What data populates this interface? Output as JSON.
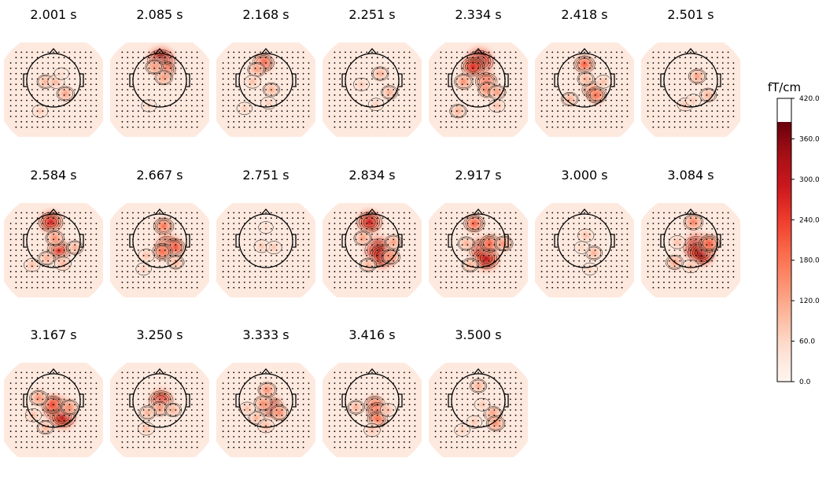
{
  "chart_data": {
    "type": "heatmap",
    "title": "",
    "panels": [
      {
        "time": "2.001 s",
        "hotspots": [
          [
            -0.3,
            0.3,
            0.3
          ],
          [
            0.1,
            0.3,
            0.28
          ],
          [
            0.45,
            -0.15,
            0.35
          ],
          [
            -0.5,
            -0.8,
            0.22
          ],
          [
            0.3,
            0.6,
            0.15
          ]
        ]
      },
      {
        "time": "2.085 s",
        "hotspots": [
          [
            0.05,
            1.08,
            0.95
          ],
          [
            0.2,
            0.75,
            0.55
          ],
          [
            0.15,
            0.45,
            0.35
          ],
          [
            -0.2,
            0.85,
            0.35
          ],
          [
            -0.4,
            -0.6,
            0.18
          ]
        ]
      },
      {
        "time": "2.168 s",
        "hotspots": [
          [
            -0.1,
            1.0,
            0.6
          ],
          [
            -0.35,
            0.75,
            0.35
          ],
          [
            0.2,
            0.0,
            0.3
          ],
          [
            -0.5,
            0.3,
            0.25
          ],
          [
            0.1,
            -0.5,
            0.2
          ],
          [
            -0.8,
            -0.7,
            0.2
          ]
        ]
      },
      {
        "time": "2.251 s",
        "hotspots": [
          [
            0.3,
            0.6,
            0.3
          ],
          [
            0.65,
            -0.1,
            0.3
          ],
          [
            -0.4,
            0.2,
            0.22
          ],
          [
            0.15,
            -0.55,
            0.2
          ]
        ]
      },
      {
        "time": "2.334 s",
        "hotspots": [
          [
            0.05,
            1.05,
            0.95
          ],
          [
            -0.2,
            0.85,
            0.7
          ],
          [
            0.3,
            0.3,
            0.6
          ],
          [
            0.35,
            0.0,
            0.45
          ],
          [
            -0.55,
            0.3,
            0.4
          ],
          [
            0.7,
            -0.1,
            0.35
          ],
          [
            -0.75,
            -0.8,
            0.3
          ],
          [
            0.7,
            -0.6,
            0.25
          ]
        ]
      },
      {
        "time": "2.418 s",
        "hotspots": [
          [
            0.0,
            0.95,
            0.55
          ],
          [
            0.3,
            0.0,
            0.55
          ],
          [
            0.45,
            -0.2,
            0.5
          ],
          [
            -0.55,
            -0.35,
            0.3
          ],
          [
            0.05,
            0.4,
            0.3
          ],
          [
            0.7,
            0.3,
            0.25
          ]
        ]
      },
      {
        "time": "2.501 s",
        "hotspots": [
          [
            0.25,
            0.5,
            0.35
          ],
          [
            0.65,
            -0.2,
            0.3
          ],
          [
            -0.2,
            -0.55,
            0.25
          ],
          [
            0.1,
            -0.4,
            0.2
          ]
        ]
      },
      {
        "time": "2.584 s",
        "hotspots": [
          [
            -0.1,
            1.05,
            0.75
          ],
          [
            0.2,
            0.0,
            0.7
          ],
          [
            0.05,
            0.45,
            0.4
          ],
          [
            0.8,
            0.1,
            0.3
          ],
          [
            -0.25,
            -0.3,
            0.3
          ],
          [
            0.35,
            -0.5,
            0.28
          ],
          [
            -0.8,
            -0.55,
            0.25
          ]
        ]
      },
      {
        "time": "2.667 s",
        "hotspots": [
          [
            0.15,
            0.9,
            0.5
          ],
          [
            0.3,
            0.15,
            0.78
          ],
          [
            0.55,
            0.1,
            0.6
          ],
          [
            0.1,
            -0.05,
            0.5
          ],
          [
            -0.5,
            -0.2,
            0.25
          ],
          [
            0.6,
            -0.45,
            0.3
          ],
          [
            -0.6,
            -0.7,
            0.2
          ]
        ]
      },
      {
        "time": "2.751 s",
        "hotspots": [
          [
            -0.15,
            0.15,
            0.22
          ],
          [
            0.3,
            0.1,
            0.22
          ],
          [
            0.0,
            0.85,
            0.15
          ]
        ]
      },
      {
        "time": "2.834 s",
        "hotspots": [
          [
            -0.1,
            1.05,
            0.8
          ],
          [
            0.25,
            0.0,
            0.98
          ],
          [
            0.4,
            -0.2,
            0.88
          ],
          [
            -0.35,
            0.45,
            0.35
          ],
          [
            0.8,
            0.3,
            0.35
          ],
          [
            0.7,
            -0.25,
            0.4
          ],
          [
            -0.15,
            -0.55,
            0.3
          ]
        ]
      },
      {
        "time": "2.917 s",
        "hotspots": [
          [
            -0.15,
            1.0,
            0.55
          ],
          [
            0.15,
            0.0,
            0.88
          ],
          [
            0.3,
            -0.3,
            0.85
          ],
          [
            0.45,
            0.25,
            0.55
          ],
          [
            0.95,
            0.25,
            0.4
          ],
          [
            -0.45,
            0.25,
            0.3
          ],
          [
            -0.3,
            -0.55,
            0.3
          ]
        ]
      },
      {
        "time": "3.000 s",
        "hotspots": [
          [
            0.05,
            0.55,
            0.25
          ],
          [
            0.35,
            -0.1,
            0.3
          ],
          [
            -0.1,
            0.1,
            0.18
          ],
          [
            0.2,
            -0.7,
            0.18
          ]
        ]
      },
      {
        "time": "3.084 s",
        "hotspots": [
          [
            0.1,
            1.05,
            0.45
          ],
          [
            0.25,
            0.1,
            0.98
          ],
          [
            0.4,
            -0.1,
            0.9
          ],
          [
            0.7,
            0.25,
            0.55
          ],
          [
            -0.6,
            -0.45,
            0.35
          ],
          [
            -0.5,
            0.3,
            0.25
          ],
          [
            0.0,
            -0.6,
            0.25
          ]
        ]
      },
      {
        "time": "3.167 s",
        "hotspots": [
          [
            0.15,
            0.0,
            0.95
          ],
          [
            0.35,
            -0.25,
            0.85
          ],
          [
            -0.05,
            0.2,
            0.6
          ],
          [
            -0.55,
            0.45,
            0.4
          ],
          [
            0.6,
            0.1,
            0.4
          ],
          [
            -0.3,
            -0.65,
            0.3
          ],
          [
            -0.75,
            -0.2,
            0.25
          ]
        ]
      },
      {
        "time": "3.250 s",
        "hotspots": [
          [
            0.05,
            0.35,
            0.75
          ],
          [
            0.0,
            0.05,
            0.35
          ],
          [
            -0.45,
            -0.1,
            0.3
          ],
          [
            0.5,
            0.0,
            0.3
          ],
          [
            -0.5,
            -0.7,
            0.25
          ]
        ]
      },
      {
        "time": "3.333 s",
        "hotspots": [
          [
            0.2,
            0.1,
            0.75
          ],
          [
            -0.1,
            0.25,
            0.4
          ],
          [
            0.05,
            0.75,
            0.4
          ],
          [
            0.5,
            -0.1,
            0.4
          ],
          [
            -0.35,
            -0.3,
            0.3
          ],
          [
            0.0,
            -0.6,
            0.28
          ],
          [
            -0.7,
            0.05,
            0.25
          ]
        ]
      },
      {
        "time": "3.416 s",
        "hotspots": [
          [
            0.1,
            0.2,
            0.55
          ],
          [
            0.2,
            -0.05,
            0.6
          ],
          [
            0.2,
            -0.35,
            0.5
          ],
          [
            -0.6,
            0.1,
            0.3
          ],
          [
            0.6,
            0.0,
            0.25
          ],
          [
            0.0,
            -0.75,
            0.25
          ]
        ]
      },
      {
        "time": "3.500 s",
        "hotspots": [
          [
            0.0,
            0.9,
            0.3
          ],
          [
            0.55,
            -0.15,
            0.4
          ],
          [
            0.65,
            -0.5,
            0.4
          ],
          [
            0.15,
            0.2,
            0.22
          ],
          [
            -0.15,
            -0.45,
            0.22
          ],
          [
            -0.6,
            -0.75,
            0.2
          ]
        ]
      }
    ],
    "colorbar": {
      "label": "fT/cm",
      "vmin": 0.0,
      "vmax": 420.0,
      "data_max": 385.0,
      "ticks": [
        "0.0",
        "60.0",
        "120.0",
        "180.0",
        "240.0",
        "300.0",
        "360.0",
        "420.0"
      ],
      "colormap": "Reds",
      "colors": [
        "#fff5f0",
        "#fee0d2",
        "#fcbba1",
        "#fc9272",
        "#fb6a4a",
        "#ef3b2c",
        "#cb181d",
        "#a50f15",
        "#67000d"
      ]
    },
    "grid": false,
    "legend": "colorbar right"
  }
}
